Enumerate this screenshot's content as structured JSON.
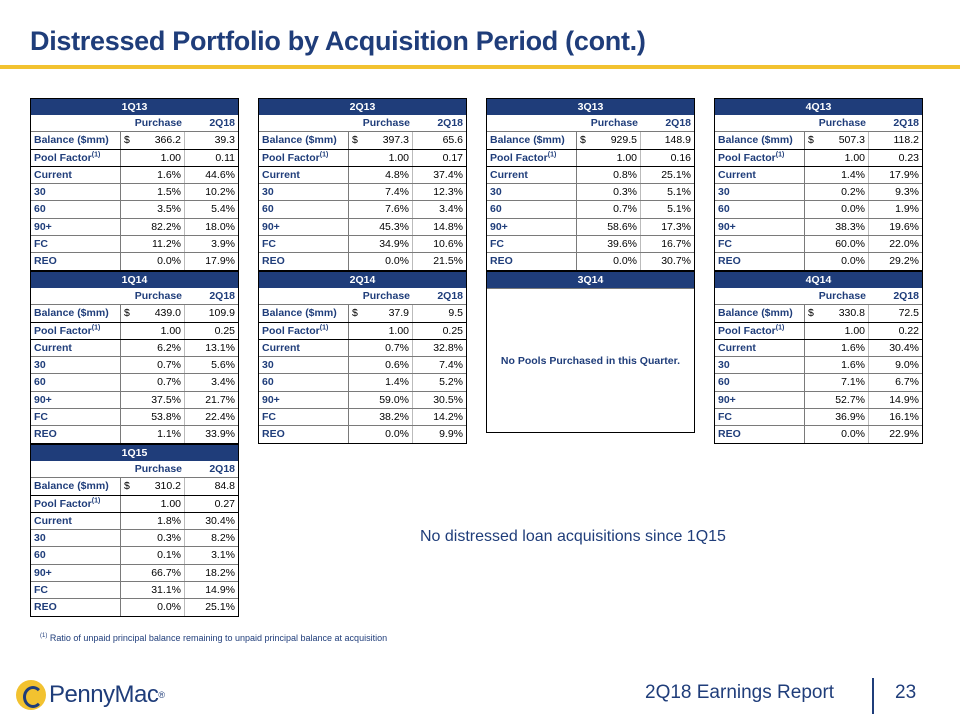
{
  "header": {
    "title": "Distressed Portfolio by Acquisition Period (cont.)"
  },
  "columns": {
    "purchase": "Purchase",
    "current": "2Q18"
  },
  "row_labels": {
    "balance": "Balance ($mm)",
    "pool_factor": "Pool Factor",
    "pool_factor_ref": "(1)",
    "current": "Current",
    "d30": "30",
    "d60": "60",
    "d90": "90+",
    "fc": "FC",
    "reo": "REO"
  },
  "currency": "$",
  "quarters": [
    {
      "name": "1Q13",
      "balance": [
        "366.2",
        "39.3"
      ],
      "pool_factor": [
        "1.00",
        "0.11"
      ],
      "current": [
        "1.6%",
        "44.6%"
      ],
      "d30": [
        "1.5%",
        "10.2%"
      ],
      "d60": [
        "3.5%",
        "5.4%"
      ],
      "d90": [
        "82.2%",
        "18.0%"
      ],
      "fc": [
        "11.2%",
        "3.9%"
      ],
      "reo": [
        "0.0%",
        "17.9%"
      ]
    },
    {
      "name": "2Q13",
      "balance": [
        "397.3",
        "65.6"
      ],
      "pool_factor": [
        "1.00",
        "0.17"
      ],
      "current": [
        "4.8%",
        "37.4%"
      ],
      "d30": [
        "7.4%",
        "12.3%"
      ],
      "d60": [
        "7.6%",
        "3.4%"
      ],
      "d90": [
        "45.3%",
        "14.8%"
      ],
      "fc": [
        "34.9%",
        "10.6%"
      ],
      "reo": [
        "0.0%",
        "21.5%"
      ]
    },
    {
      "name": "3Q13",
      "balance": [
        "929.5",
        "148.9"
      ],
      "pool_factor": [
        "1.00",
        "0.16"
      ],
      "current": [
        "0.8%",
        "25.1%"
      ],
      "d30": [
        "0.3%",
        "5.1%"
      ],
      "d60": [
        "0.7%",
        "5.1%"
      ],
      "d90": [
        "58.6%",
        "17.3%"
      ],
      "fc": [
        "39.6%",
        "16.7%"
      ],
      "reo": [
        "0.0%",
        "30.7%"
      ]
    },
    {
      "name": "4Q13",
      "balance": [
        "507.3",
        "118.2"
      ],
      "pool_factor": [
        "1.00",
        "0.23"
      ],
      "current": [
        "1.4%",
        "17.9%"
      ],
      "d30": [
        "0.2%",
        "9.3%"
      ],
      "d60": [
        "0.0%",
        "1.9%"
      ],
      "d90": [
        "38.3%",
        "19.6%"
      ],
      "fc": [
        "60.0%",
        "22.0%"
      ],
      "reo": [
        "0.0%",
        "29.2%"
      ]
    },
    {
      "name": "1Q14",
      "balance": [
        "439.0",
        "109.9"
      ],
      "pool_factor": [
        "1.00",
        "0.25"
      ],
      "current": [
        "6.2%",
        "13.1%"
      ],
      "d30": [
        "0.7%",
        "5.6%"
      ],
      "d60": [
        "0.7%",
        "3.4%"
      ],
      "d90": [
        "37.5%",
        "21.7%"
      ],
      "fc": [
        "53.8%",
        "22.4%"
      ],
      "reo": [
        "1.1%",
        "33.9%"
      ]
    },
    {
      "name": "2Q14",
      "balance": [
        "37.9",
        "9.5"
      ],
      "pool_factor": [
        "1.00",
        "0.25"
      ],
      "current": [
        "0.7%",
        "32.8%"
      ],
      "d30": [
        "0.6%",
        "7.4%"
      ],
      "d60": [
        "1.4%",
        "5.2%"
      ],
      "d90": [
        "59.0%",
        "30.5%"
      ],
      "fc": [
        "38.2%",
        "14.2%"
      ],
      "reo": [
        "0.0%",
        "9.9%"
      ]
    },
    {
      "name": "4Q14",
      "balance": [
        "330.8",
        "72.5"
      ],
      "pool_factor": [
        "1.00",
        "0.22"
      ],
      "current": [
        "1.6%",
        "30.4%"
      ],
      "d30": [
        "1.6%",
        "9.0%"
      ],
      "d60": [
        "7.1%",
        "6.7%"
      ],
      "d90": [
        "52.7%",
        "14.9%"
      ],
      "fc": [
        "36.9%",
        "16.1%"
      ],
      "reo": [
        "0.0%",
        "22.9%"
      ]
    },
    {
      "name": "1Q15",
      "balance": [
        "310.2",
        "84.8"
      ],
      "pool_factor": [
        "1.00",
        "0.27"
      ],
      "current": [
        "1.8%",
        "30.4%"
      ],
      "d30": [
        "0.3%",
        "8.2%"
      ],
      "d60": [
        "0.1%",
        "3.1%"
      ],
      "d90": [
        "66.7%",
        "18.2%"
      ],
      "fc": [
        "31.1%",
        "14.9%"
      ],
      "reo": [
        "0.0%",
        "25.1%"
      ]
    }
  ],
  "no_pool_quarter": {
    "name": "3Q14",
    "message": "No Pools Purchased in this Quarter."
  },
  "note": "No distressed loan acquisitions since 1Q15",
  "footnote": {
    "ref": "(1)",
    "text": "Ratio of unpaid principal balance remaining to unpaid principal balance at acquisition"
  },
  "footer": {
    "brand": "PennyMac",
    "registered": "®",
    "report": "2Q18 Earnings Report",
    "page": "23"
  }
}
